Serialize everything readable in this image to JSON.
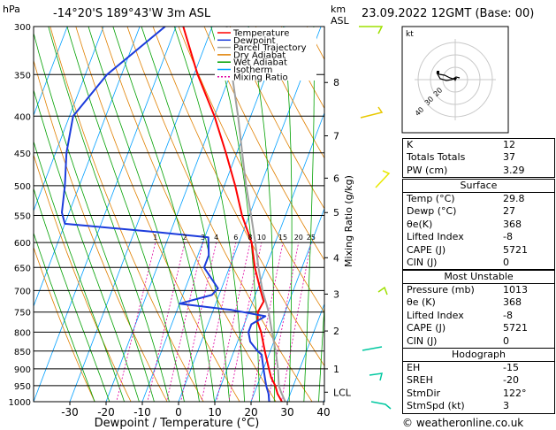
{
  "header": {
    "location": "-14°20'S  189°43'W  3m  ASL",
    "datetime": "23.09.2022  12GMT  (Base: 00)",
    "hpa_label": "hPa",
    "km_label": "km",
    "asl_label": "ASL"
  },
  "legend": [
    {
      "label": "Temperature",
      "color": "#ff0000"
    },
    {
      "label": "Dewpoint",
      "color": "#1c3cdc"
    },
    {
      "label": "Parcel Trajectory",
      "color": "#a0a0a0"
    },
    {
      "label": "Dry Adiabat",
      "color": "#e08000"
    },
    {
      "label": "Wet Adiabat",
      "color": "#00a000"
    },
    {
      "label": "Isotherm",
      "color": "#00a0ff"
    },
    {
      "label": "Mixing Ratio",
      "color": "#e000a0"
    }
  ],
  "chart_data": {
    "type": "line",
    "xlabel": "Dewpoint / Temperature (°C)",
    "ylabel": "Mixing Ratio (g/kg)",
    "x_ticks": [
      -30,
      -20,
      -10,
      0,
      10,
      20,
      30,
      40
    ],
    "pressure_levels": [
      300,
      350,
      400,
      450,
      500,
      550,
      600,
      650,
      700,
      750,
      800,
      850,
      900,
      950,
      1000
    ],
    "km_ticks": [
      {
        "label": "8",
        "p": 359
      },
      {
        "label": "7",
        "p": 426
      },
      {
        "label": "6",
        "p": 488
      },
      {
        "label": "5",
        "p": 545
      },
      {
        "label": "4",
        "p": 630
      },
      {
        "label": "3",
        "p": 708
      },
      {
        "label": "2",
        "p": 797
      },
      {
        "label": "1",
        "p": 900
      },
      {
        "label": "LCL",
        "p": 970
      }
    ],
    "mixing_ratio_labels": [
      {
        "label": "1",
        "w": 1
      },
      {
        "label": "2",
        "w": 2
      },
      {
        "label": "3",
        "w": 3
      },
      {
        "label": "4",
        "w": 4
      },
      {
        "label": "6",
        "w": 6
      },
      {
        "label": "8",
        "w": 8
      },
      {
        "label": "10",
        "w": 10
      },
      {
        "label": "15",
        "w": 15
      },
      {
        "label": "20",
        "w": 20
      },
      {
        "label": "25",
        "w": 25
      }
    ],
    "mixing_ratio_label_p": 600,
    "series": [
      {
        "name": "Temperature",
        "points": [
          [
            1005,
            29.8
          ],
          [
            1000,
            28.5
          ],
          [
            975,
            26.5
          ],
          [
            950,
            25
          ],
          [
            925,
            23
          ],
          [
            900,
            21.5
          ],
          [
            850,
            18.5
          ],
          [
            800,
            15.5
          ],
          [
            775,
            13.5
          ],
          [
            750,
            12.5
          ],
          [
            725,
            13
          ],
          [
            700,
            11
          ],
          [
            650,
            7
          ],
          [
            600,
            3.5
          ],
          [
            550,
            -2
          ],
          [
            500,
            -7
          ],
          [
            450,
            -13
          ],
          [
            400,
            -20
          ],
          [
            350,
            -29
          ],
          [
            300,
            -38
          ]
        ]
      },
      {
        "name": "Dewpoint",
        "points": [
          [
            1005,
            27
          ],
          [
            1000,
            25
          ],
          [
            975,
            24
          ],
          [
            950,
            22.5
          ],
          [
            900,
            20
          ],
          [
            860,
            18
          ],
          [
            850,
            16.5
          ],
          [
            825,
            13.5
          ],
          [
            800,
            12
          ],
          [
            780,
            12
          ],
          [
            760,
            15
          ],
          [
            745,
            5
          ],
          [
            735,
            -5
          ],
          [
            730,
            -10
          ],
          [
            710,
            -2
          ],
          [
            695,
            -1
          ],
          [
            650,
            -7
          ],
          [
            640,
            -7
          ],
          [
            625,
            -7
          ],
          [
            590,
            -9
          ],
          [
            580,
            -24
          ],
          [
            565,
            -50
          ],
          [
            545,
            -52
          ],
          [
            500,
            -54
          ],
          [
            450,
            -57
          ],
          [
            400,
            -59
          ],
          [
            350,
            -54
          ],
          [
            300,
            -43
          ]
        ]
      },
      {
        "name": "Parcel Trajectory",
        "points": [
          [
            1005,
            29.8
          ],
          [
            970,
            27.3
          ],
          [
            950,
            26
          ],
          [
            900,
            24
          ],
          [
            850,
            21.5
          ],
          [
            800,
            18.5
          ],
          [
            750,
            15.5
          ],
          [
            700,
            11.5
          ],
          [
            650,
            8
          ],
          [
            600,
            4.5
          ],
          [
            550,
            0.5
          ],
          [
            500,
            -4
          ],
          [
            450,
            -8.5
          ],
          [
            400,
            -13.5
          ],
          [
            350,
            -19.5
          ],
          [
            300,
            -26
          ]
        ]
      }
    ]
  },
  "hodograph": {
    "label": "kt",
    "ring_labels": [
      "40",
      "30",
      "20"
    ]
  },
  "indices": {
    "rows": [
      {
        "label": "K",
        "value": "12"
      },
      {
        "label": "Totals Totals",
        "value": "37"
      },
      {
        "label": "PW (cm)",
        "value": "3.29"
      }
    ]
  },
  "surface": {
    "title": "Surface",
    "rows": [
      {
        "label": "Temp (°C)",
        "value": "29.8"
      },
      {
        "label": "Dewp (°C)",
        "value": "27"
      },
      {
        "label": "θe(K)",
        "value": "368"
      },
      {
        "label": "Lifted Index",
        "value": "-8"
      },
      {
        "label": "CAPE (J)",
        "value": "5721"
      },
      {
        "label": "CIN (J)",
        "value": "0"
      }
    ]
  },
  "most_unstable": {
    "title": "Most Unstable",
    "rows": [
      {
        "label": "Pressure (mb)",
        "value": "1013"
      },
      {
        "label": "θe (K)",
        "value": "368"
      },
      {
        "label": "Lifted Index",
        "value": "-8"
      },
      {
        "label": "CAPE (J)",
        "value": "5721"
      },
      {
        "label": "CIN (J)",
        "value": "0"
      }
    ]
  },
  "hodograph_table": {
    "title": "Hodograph",
    "rows": [
      {
        "label": "EH",
        "value": "-15"
      },
      {
        "label": "SREH",
        "value": "-20"
      },
      {
        "label": "StmDir",
        "value": "122°"
      },
      {
        "label": "StmSpd (kt)",
        "value": "3"
      }
    ]
  },
  "footer": "© weatheronline.co.uk",
  "colors": {
    "temperature": "#ff0000",
    "dewpoint": "#1c3cdc",
    "parcel": "#a0a0a0",
    "dry_adiabat": "#e08000",
    "wet_adiabat": "#00a000",
    "isotherm": "#00a0ff",
    "mixing_ratio": "#e000a0",
    "wind_barb": "#9ee000"
  }
}
